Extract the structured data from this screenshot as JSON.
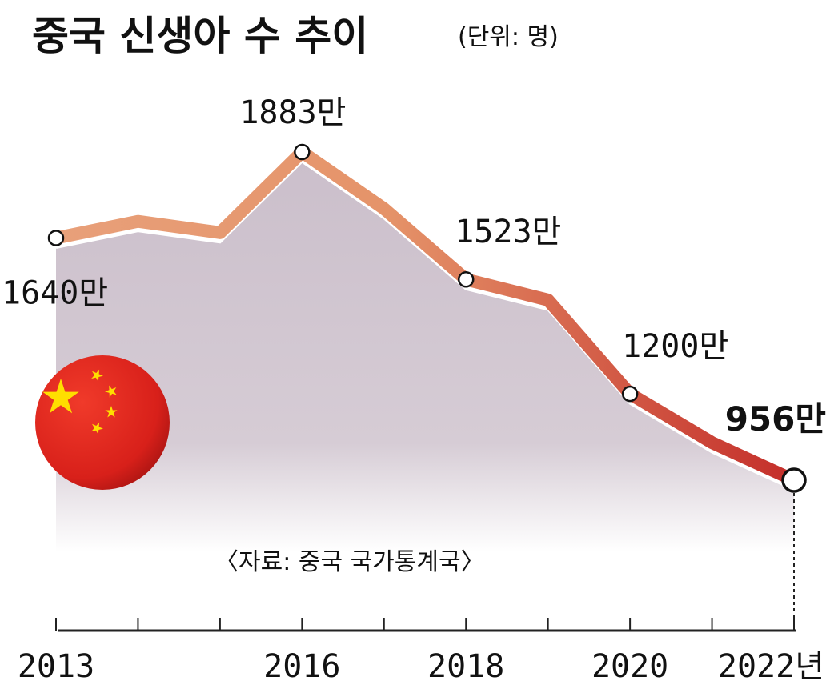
{
  "title": "중국 신생아 수 추이",
  "unit": "(단위: 명)",
  "source": "〈자료: 중국 국가통계국〉",
  "chart_data": {
    "type": "area",
    "title": "중국 신생아 수 추이",
    "unit": "(단위: 명)",
    "x": [
      2013,
      2014,
      2015,
      2016,
      2017,
      2018,
      2019,
      2020,
      2021,
      2022
    ],
    "values": [
      1640,
      1687,
      1655,
      1883,
      1723,
      1523,
      1465,
      1200,
      1062,
      956
    ],
    "value_unit": "만",
    "x_tick_labels": [
      "2013",
      "2016",
      "2018",
      "2020",
      "2022년"
    ],
    "x_tick_label_years": [
      2013,
      2016,
      2018,
      2020,
      2022
    ],
    "point_labels": [
      {
        "year": 2013,
        "text": "1640만"
      },
      {
        "year": 2016,
        "text": "1883만"
      },
      {
        "year": 2018,
        "text": "1523만"
      },
      {
        "year": 2020,
        "text": "1200만"
      },
      {
        "year": 2022,
        "text": "956만"
      }
    ],
    "highlight_year": 2022,
    "grid": false,
    "legend": "none",
    "colors": {
      "line_start": "#e8a07a",
      "line_end": "#c42e2a",
      "area": "#cfc2cd",
      "flag_red": "#de2910",
      "flag_star": "#ffde00"
    }
  }
}
